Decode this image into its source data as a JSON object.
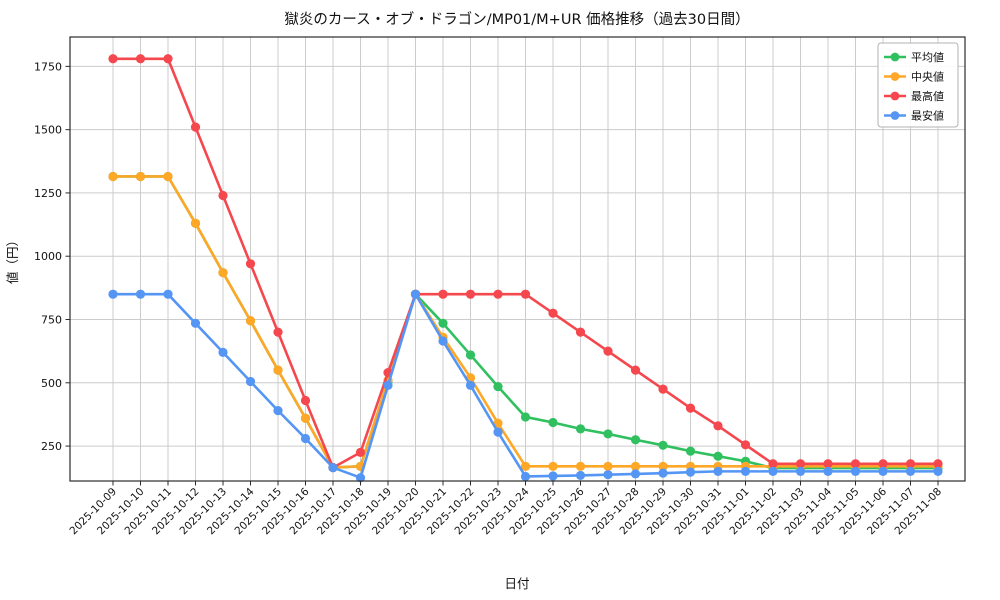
{
  "chart_data": {
    "type": "line",
    "title": "獄炎のカース・オブ・ドラゴン/MP01/M+UR 価格推移（過去30日間）",
    "xlabel": "日付",
    "ylabel": "値（円）",
    "x": [
      "2025-10-09",
      "2025-10-10",
      "2025-10-11",
      "2025-10-12",
      "2025-10-13",
      "2025-10-14",
      "2025-10-15",
      "2025-10-16",
      "2025-10-17",
      "2025-10-18",
      "2025-10-19",
      "2025-10-20",
      "2025-10-21",
      "2025-10-22",
      "2025-10-23",
      "2025-10-24",
      "2025-10-25",
      "2025-10-26",
      "2025-10-27",
      "2025-10-28",
      "2025-10-29",
      "2025-10-30",
      "2025-10-31",
      "2025-11-01",
      "2025-11-02",
      "2025-11-03",
      "2025-11-04",
      "2025-11-05",
      "2025-11-06",
      "2025-11-07",
      "2025-11-08"
    ],
    "series": [
      {
        "name": "平均値",
        "color": "#30c060",
        "values": [
          1315,
          1315,
          1315,
          1130,
          935,
          745,
          550,
          360,
          165,
          170,
          505,
          850,
          735,
          610,
          485,
          365,
          343,
          318,
          298,
          275,
          253,
          230,
          210,
          190,
          163,
          163,
          163,
          163,
          163,
          163,
          163
        ]
      },
      {
        "name": "中央値",
        "color": "#ffa726",
        "values": [
          1315,
          1315,
          1315,
          1130,
          935,
          745,
          550,
          360,
          165,
          170,
          510,
          850,
          680,
          520,
          340,
          170,
          170,
          170,
          170,
          170,
          170,
          170,
          170,
          170,
          170,
          170,
          170,
          170,
          170,
          170,
          170
        ]
      },
      {
        "name": "最高値",
        "color": "#f4484e",
        "values": [
          1780,
          1780,
          1780,
          1510,
          1240,
          970,
          700,
          430,
          165,
          225,
          540,
          850,
          850,
          850,
          850,
          850,
          775,
          700,
          625,
          550,
          475,
          400,
          330,
          255,
          180,
          180,
          180,
          180,
          180,
          180,
          180
        ]
      },
      {
        "name": "最安値",
        "color": "#5596f5",
        "values": [
          850,
          850,
          850,
          735,
          620,
          505,
          390,
          280,
          165,
          125,
          490,
          850,
          665,
          490,
          305,
          130,
          132,
          134,
          137,
          140,
          143,
          147,
          150,
          150,
          150,
          150,
          150,
          150,
          150,
          150,
          150
        ]
      }
    ],
    "y_ticks": [
      250,
      500,
      750,
      1000,
      1250,
      1500,
      1750
    ],
    "ylim": [
      112,
      1866
    ],
    "grid": true,
    "grid_color": "#cccccc",
    "axis_color": "#2b2b2b",
    "legend_position": "upper right",
    "marker": "circle"
  }
}
